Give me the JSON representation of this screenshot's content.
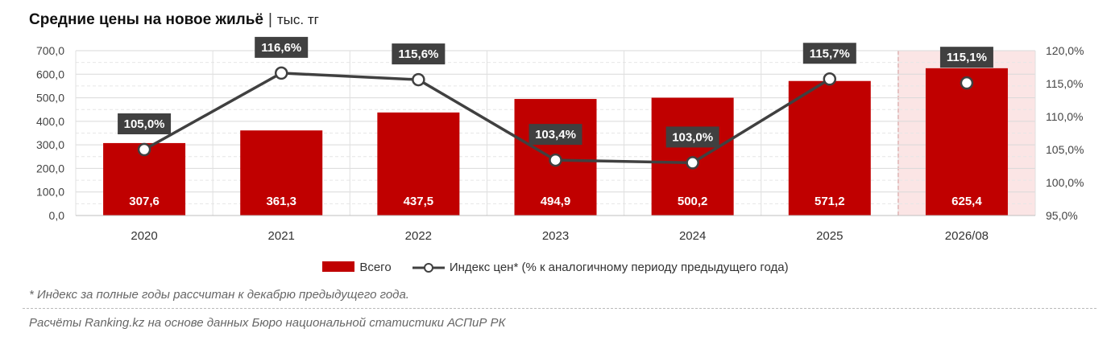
{
  "title": "Средние цены на новое жильё",
  "title_separator": "|",
  "title_unit": "тыс. тг",
  "legend": {
    "bars": "Всего",
    "line": "Индекс цен* (% к аналогичному периоду предыдущего года)"
  },
  "footnote": "* Индекс за полные годы рассчитан к декабрю предыдущего года.",
  "source": "Расчёты Ranking.kz на основе данных Бюро национальной статистики АСПиР РК",
  "colors": {
    "bar": "#c00000",
    "line": "#404040",
    "highlight_bg": "#fbe5e5",
    "highlight_border": "#c00000"
  },
  "chart_data": {
    "type": "bar",
    "categories": [
      "2020",
      "2021",
      "2022",
      "2023",
      "2024",
      "2025",
      "2026/08"
    ],
    "series": [
      {
        "name": "Всего",
        "type": "bar",
        "axis": "left",
        "values": [
          307.6,
          361.3,
          437.5,
          494.9,
          500.2,
          571.2,
          625.4
        ],
        "labels": [
          "307,6",
          "361,3",
          "437,5",
          "494,9",
          "500,2",
          "571,2",
          "625,4"
        ]
      },
      {
        "name": "Индекс цен* (% к аналогичному периоду предыдущего года)",
        "type": "line",
        "axis": "right",
        "values": [
          105.0,
          116.6,
          115.6,
          103.4,
          103.0,
          115.7,
          115.1
        ],
        "labels": [
          "105,0%",
          "116,6%",
          "115,6%",
          "103,4%",
          "103,0%",
          "115,7%",
          "115,1%"
        ]
      }
    ],
    "y_left": {
      "min": 0,
      "max": 700,
      "ticks": [
        "0,0",
        "100,0",
        "200,0",
        "300,0",
        "400,0",
        "500,0",
        "600,0",
        "700,0"
      ]
    },
    "y_right": {
      "min": 95,
      "max": 120,
      "ticks": [
        "95,0%",
        "100,0%",
        "105,0%",
        "110,0%",
        "115,0%",
        "120,0%"
      ]
    },
    "highlighted_category": "2026/08",
    "grid": true,
    "legend_position": "bottom"
  }
}
